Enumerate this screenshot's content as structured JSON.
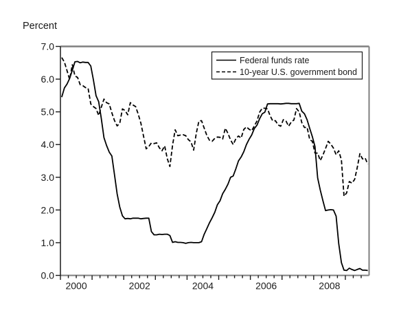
{
  "chart_data": {
    "type": "line",
    "title": "",
    "ylabel": "Percent",
    "xlabel": "",
    "grid": false,
    "x_frequency": "monthly",
    "x_start": "2000-01",
    "x_end": "2009-09",
    "x_axis": {
      "min": 2000.0,
      "max": 2009.75,
      "tick_labels": [
        "2000",
        "2002",
        "2004",
        "2006",
        "2008"
      ],
      "major_tick_interval_years": 1,
      "minor_tick_interval_years": 0.25,
      "label_center_offset_years": 0.5
    },
    "y_axis": {
      "min": 0.0,
      "max": 7.0,
      "tick_step": 1.0,
      "tick_labels_top_to_bottom": [
        "7.0",
        "6.0",
        "5.0",
        "4.0",
        "3.0",
        "2.0",
        "1.0",
        "0.0"
      ]
    },
    "legend": {
      "position": "top-right",
      "border": true
    },
    "series": [
      {
        "name": "Federal funds rate",
        "line_style": "solid",
        "color": "#000000",
        "values": [
          5.45,
          5.73,
          5.85,
          6.02,
          6.27,
          6.53,
          6.54,
          6.5,
          6.52,
          6.51,
          6.51,
          6.4,
          5.98,
          5.49,
          5.31,
          4.8,
          4.21,
          3.97,
          3.77,
          3.65,
          3.07,
          2.49,
          2.09,
          1.82,
          1.73,
          1.74,
          1.73,
          1.75,
          1.75,
          1.75,
          1.73,
          1.74,
          1.75,
          1.75,
          1.34,
          1.24,
          1.24,
          1.26,
          1.25,
          1.26,
          1.26,
          1.22,
          1.01,
          1.03,
          1.01,
          1.01,
          1.0,
          0.98,
          1.0,
          1.01,
          1.0,
          1.0,
          1.0,
          1.03,
          1.26,
          1.43,
          1.61,
          1.76,
          1.93,
          2.16,
          2.28,
          2.5,
          2.63,
          2.79,
          3.0,
          3.04,
          3.26,
          3.5,
          3.62,
          3.78,
          4.0,
          4.16,
          4.29,
          4.49,
          4.59,
          4.79,
          4.94,
          4.99,
          5.24,
          5.25,
          5.25,
          5.25,
          5.25,
          5.24,
          5.25,
          5.26,
          5.26,
          5.25,
          5.25,
          5.25,
          5.26,
          5.02,
          4.94,
          4.76,
          4.49,
          4.24,
          3.94,
          2.98,
          2.61,
          2.28,
          1.98,
          2.0,
          2.01,
          2.0,
          1.81,
          0.97,
          0.39,
          0.16,
          0.15,
          0.22,
          0.18,
          0.15,
          0.18,
          0.21,
          0.16,
          0.16,
          0.15
        ]
      },
      {
        "name": "10-year U.S. government bond",
        "line_style": "dashed",
        "color": "#000000",
        "values": [
          6.66,
          6.52,
          6.26,
          5.99,
          6.44,
          6.1,
          6.05,
          5.83,
          5.8,
          5.74,
          5.72,
          5.24,
          5.16,
          5.1,
          4.89,
          5.14,
          5.39,
          5.28,
          5.24,
          4.97,
          4.73,
          4.57,
          4.65,
          5.09,
          5.04,
          4.91,
          5.28,
          5.21,
          5.16,
          4.93,
          4.65,
          4.26,
          3.87,
          3.94,
          4.05,
          4.03,
          4.05,
          3.9,
          3.81,
          3.96,
          3.57,
          3.33,
          3.98,
          4.45,
          4.27,
          4.29,
          4.3,
          4.27,
          4.15,
          4.08,
          3.83,
          4.35,
          4.72,
          4.73,
          4.5,
          4.28,
          4.13,
          4.1,
          4.19,
          4.23,
          4.22,
          4.17,
          4.5,
          4.34,
          4.14,
          4.0,
          4.18,
          4.26,
          4.2,
          4.46,
          4.54,
          4.47,
          4.42,
          4.57,
          4.72,
          4.99,
          5.11,
          5.11,
          5.09,
          4.88,
          4.72,
          4.73,
          4.6,
          4.56,
          4.76,
          4.72,
          4.56,
          4.69,
          4.75,
          5.1,
          5.0,
          4.67,
          4.52,
          4.53,
          4.15,
          4.1,
          3.74,
          3.74,
          3.51,
          3.68,
          3.88,
          4.1,
          4.01,
          3.89,
          3.69,
          3.81,
          3.53,
          2.42,
          2.52,
          2.87,
          2.82,
          2.93,
          3.29,
          3.72,
          3.56,
          3.59,
          3.4
        ]
      }
    ]
  },
  "colors": {
    "background": "#ffffff",
    "frame": "#7f7f7f",
    "axis": "#1a1a1a",
    "text": "#1a1a1a",
    "line": "#000000",
    "legend_background": "#ffffff",
    "legend_border": "#1a1a1a"
  }
}
